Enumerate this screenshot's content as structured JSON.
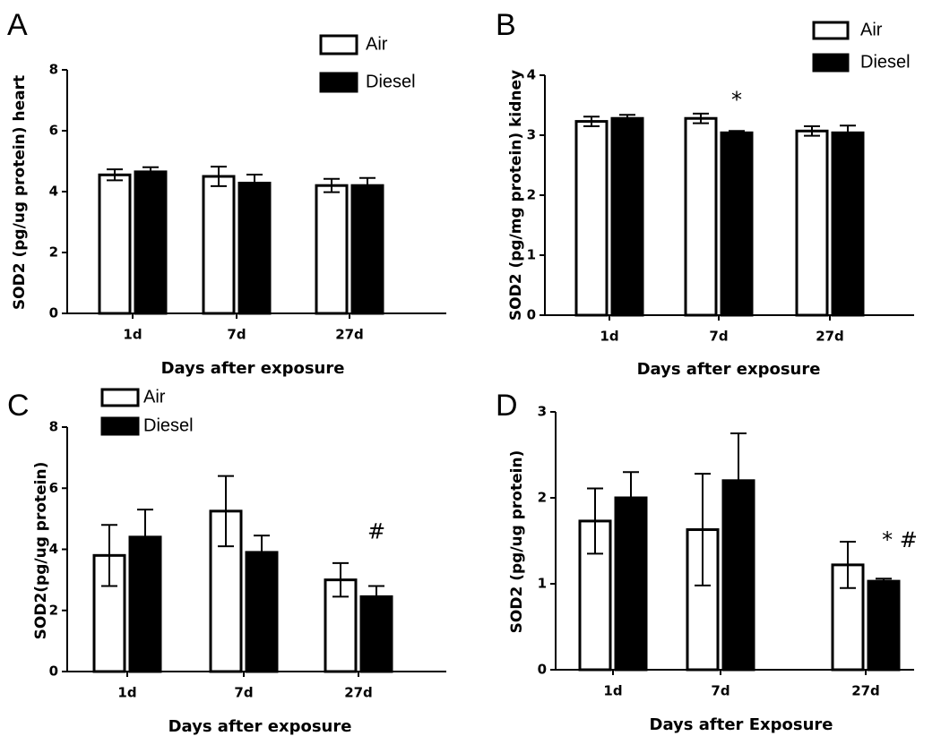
{
  "figure": {
    "colors": {
      "air_fill": "#ffffff",
      "diesel_fill": "#000000",
      "stroke": "#000000"
    }
  },
  "chart_data": [
    {
      "type": "bar",
      "panel": "A",
      "categories": [
        "1d",
        "7d",
        "27d"
      ],
      "series": [
        {
          "name": "Air",
          "values": [
            4.55,
            4.5,
            4.2
          ],
          "errors": [
            0.18,
            0.32,
            0.22
          ]
        },
        {
          "name": "Diesel",
          "values": [
            4.65,
            4.28,
            4.2
          ],
          "errors": [
            0.15,
            0.28,
            0.25
          ]
        }
      ],
      "annotations": [],
      "xlabel": "Days after exposure",
      "ylabel": "SOD2 (pg/ug protein) heart",
      "ylim": [
        0,
        8
      ],
      "yticks": [
        "0",
        "2",
        "4",
        "6",
        "8"
      ],
      "legend": "top-right"
    },
    {
      "type": "bar",
      "panel": "B",
      "categories": [
        "1d",
        "7d",
        "27d"
      ],
      "series": [
        {
          "name": "Air",
          "values": [
            3.23,
            3.28,
            3.07
          ],
          "errors": [
            0.08,
            0.08,
            0.08
          ]
        },
        {
          "name": "Diesel",
          "values": [
            3.28,
            3.04,
            3.04
          ],
          "errors": [
            0.06,
            0.03,
            0.12
          ]
        }
      ],
      "annotations": [
        {
          "text": "*",
          "category": "7d",
          "series": "Diesel"
        }
      ],
      "xlabel": "Days after exposure",
      "ylabel": "SOD2 (pg/mg protein) kidney",
      "ylim": [
        0,
        4
      ],
      "yticks": [
        "0",
        "1",
        "2",
        "3",
        "4"
      ],
      "legend": "top-right"
    },
    {
      "type": "bar",
      "panel": "C",
      "categories": [
        "1d",
        "7d",
        "27d"
      ],
      "series": [
        {
          "name": "Air",
          "values": [
            3.8,
            5.25,
            3.0
          ],
          "errors": [
            1.0,
            1.15,
            0.55
          ]
        },
        {
          "name": "Diesel",
          "values": [
            4.4,
            3.9,
            2.45
          ],
          "errors": [
            0.9,
            0.55,
            0.35
          ]
        }
      ],
      "annotations": [
        {
          "text": "#",
          "category": "27d",
          "series": "Diesel"
        }
      ],
      "xlabel": "Days after exposure",
      "ylabel": "SOD2(pg/ug protein)",
      "ylim": [
        0,
        8
      ],
      "yticks": [
        "0",
        "2",
        "4",
        "6",
        "8"
      ],
      "legend": "top-left"
    },
    {
      "type": "bar",
      "panel": "D",
      "categories": [
        "1d",
        "7d",
        "27d"
      ],
      "series": [
        {
          "name": "Air",
          "values": [
            1.73,
            1.63,
            1.22
          ],
          "errors": [
            0.38,
            0.65,
            0.27
          ]
        },
        {
          "name": "Diesel",
          "values": [
            2.0,
            2.2,
            1.03
          ],
          "errors": [
            0.3,
            0.55,
            0.03
          ]
        }
      ],
      "annotations": [
        {
          "text": "* #",
          "category": "27d",
          "series": "Diesel"
        }
      ],
      "xlabel": "Days after Exposure",
      "ylabel": "SOD2 (pg/ug protein)",
      "ylim": [
        0,
        3
      ],
      "yticks": [
        "0",
        "1",
        "2",
        "3"
      ],
      "legend": "none"
    }
  ]
}
